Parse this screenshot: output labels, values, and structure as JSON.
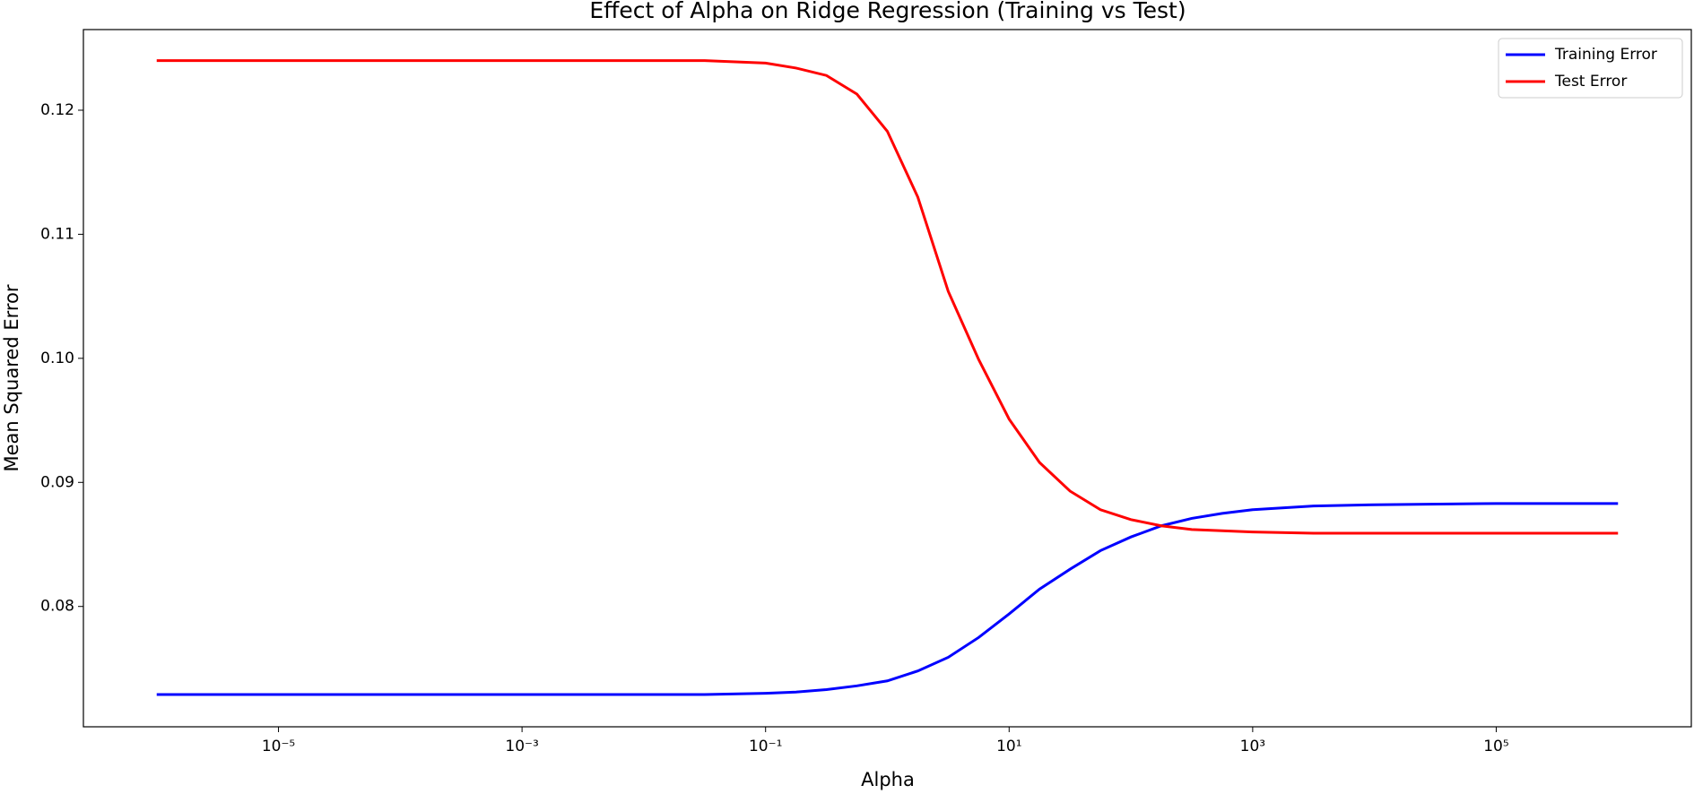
{
  "chart_data": {
    "type": "line",
    "title": "Effect of Alpha on Ridge Regression (Training vs Test)",
    "xlabel": "Alpha",
    "ylabel": "Mean Squared Error",
    "xscale": "log",
    "x": [
      1e-06,
      1e-05,
      0.0001,
      0.001,
      0.01,
      0.03162,
      0.1,
      0.1778,
      0.3162,
      0.5623,
      1,
      1.778,
      3.162,
      5.623,
      10,
      17.78,
      31.62,
      56.23,
      100,
      177.8,
      316.2,
      562.3,
      1000,
      3162,
      10000,
      100000,
      1000000
    ],
    "series": [
      {
        "name": "Training Error",
        "color": "#0000ff",
        "values": [
          0.0729,
          0.0729,
          0.0729,
          0.0729,
          0.0729,
          0.0729,
          0.073,
          0.0731,
          0.0733,
          0.0736,
          0.074,
          0.0748,
          0.0759,
          0.0775,
          0.0794,
          0.0814,
          0.083,
          0.0845,
          0.0856,
          0.0865,
          0.0871,
          0.0875,
          0.0878,
          0.0881,
          0.0882,
          0.0883,
          0.0883
        ]
      },
      {
        "name": "Test Error",
        "color": "#ff0000",
        "values": [
          0.124,
          0.124,
          0.124,
          0.124,
          0.124,
          0.124,
          0.1238,
          0.1234,
          0.1228,
          0.1213,
          0.1183,
          0.113,
          0.1054,
          0.0999,
          0.0951,
          0.0916,
          0.0893,
          0.0878,
          0.087,
          0.0865,
          0.0862,
          0.0861,
          0.086,
          0.0859,
          0.0859,
          0.0859,
          0.0859
        ]
      }
    ],
    "xlim": [
      2.5e-07,
      4000000.0
    ],
    "xticks": [
      {
        "value": 1e-05,
        "label": "10⁻⁵"
      },
      {
        "value": 0.001,
        "label": "10⁻³"
      },
      {
        "value": 0.1,
        "label": "10⁻¹"
      },
      {
        "value": 10,
        "label": "10¹"
      },
      {
        "value": 1000,
        "label": "10³"
      },
      {
        "value": 100000,
        "label": "10⁵"
      }
    ],
    "ylim": [
      0.0703,
      0.1265
    ],
    "yticks": [
      0.08,
      0.09,
      {
        "value": 0.1,
        "label": "0.10"
      },
      0.11,
      0.12
    ],
    "grid": false,
    "legend": "upper right"
  }
}
